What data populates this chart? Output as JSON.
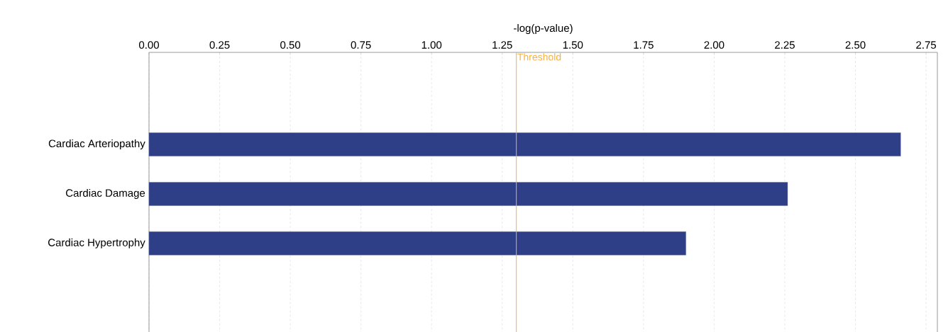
{
  "chart_data": {
    "type": "bar",
    "orientation": "horizontal",
    "xlabel": "-log(p-value)",
    "categories": [
      "Cardiac Arteriopathy",
      "Cardiac Damage",
      "Cardiac Hypertrophy"
    ],
    "values": [
      2.66,
      2.26,
      1.9
    ],
    "color": "#2e3f87",
    "xlim": [
      0,
      2.79
    ],
    "xticks": [
      {
        "value": 0,
        "label": "0.00"
      },
      {
        "value": 0.25,
        "label": "0.25"
      },
      {
        "value": 0.5,
        "label": "0.50"
      },
      {
        "value": 0.75,
        "label": "0.75"
      },
      {
        "value": 1,
        "label": "1.00"
      },
      {
        "value": 1.25,
        "label": "1.25"
      },
      {
        "value": 1.5,
        "label": "1.50"
      },
      {
        "value": 1.75,
        "label": "1.75"
      },
      {
        "value": 2,
        "label": "2.00"
      },
      {
        "value": 2.25,
        "label": "2.25"
      },
      {
        "value": 2.5,
        "label": "2.50"
      },
      {
        "value": 2.75,
        "label": "2.75"
      }
    ],
    "grid": "x",
    "ref_lines": [
      {
        "axis": "x",
        "value": 1.3,
        "label": "Threshold",
        "color": "#f5b041"
      }
    ]
  }
}
